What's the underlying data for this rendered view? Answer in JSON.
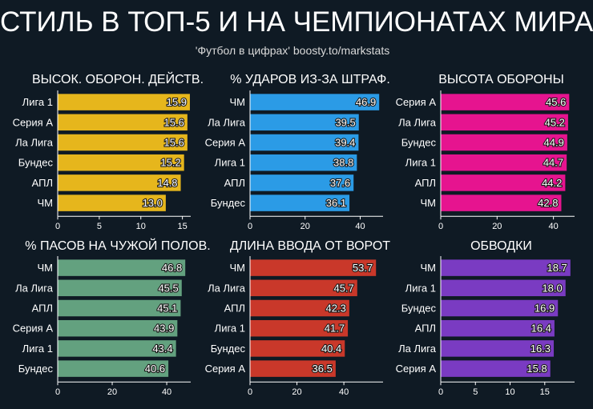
{
  "title": "СТИЛЬ В ТОП-5 И НА ЧЕМПИОНАТАХ МИРА",
  "subtitle": "'Футбол в цифрах' boosty.to/markstats",
  "chart_data": [
    {
      "type": "bar",
      "orientation": "horizontal",
      "title": "ВЫСОК. ОБОРОН. ДЕЙСТВ.",
      "color": "#e6b61c",
      "categories": [
        "Лига 1",
        "Серия А",
        "Ла Лига",
        "Бундес",
        "АПЛ",
        "ЧМ"
      ],
      "values": [
        15.9,
        15.6,
        15.6,
        15.2,
        14.8,
        13.0
      ],
      "labels": [
        "15.9",
        "15.6",
        "15.6",
        "15.2",
        "14.8",
        "13.0"
      ],
      "xticks": [
        0,
        5,
        10,
        15
      ],
      "xlim": [
        0,
        16.0
      ]
    },
    {
      "type": "bar",
      "orientation": "horizontal",
      "title": "% УДАРОВ ИЗ-ЗА ШТРАФ.",
      "color": "#2b9be6",
      "categories": [
        "ЧМ",
        "Ла Лига",
        "Серия А",
        "Лига 1",
        "АПЛ",
        "Бундес"
      ],
      "values": [
        46.9,
        39.5,
        39.4,
        38.8,
        37.6,
        36.1
      ],
      "labels": [
        "46.9",
        "39.5",
        "39.4",
        "38.8",
        "37.6",
        "36.1"
      ],
      "xticks": [
        0,
        20,
        40
      ],
      "xlim": [
        0,
        48.3
      ]
    },
    {
      "type": "bar",
      "orientation": "horizontal",
      "title": "ВЫСОТА ОБОРОНЫ",
      "color": "#e6148f",
      "categories": [
        "Серия А",
        "Ла Лига",
        "Бундес",
        "Лига 1",
        "АПЛ",
        "ЧМ"
      ],
      "values": [
        45.6,
        45.2,
        44.9,
        44.7,
        44.2,
        42.8
      ],
      "labels": [
        "45.6",
        "45.2",
        "44.9",
        "44.7",
        "44.2",
        "42.8"
      ],
      "xticks": [
        0,
        20,
        40
      ],
      "xlim": [
        0,
        47.5
      ]
    },
    {
      "type": "bar",
      "orientation": "horizontal",
      "title": "% ПАСОВ НА ЧУЖОЙ ПОЛОВ.",
      "color": "#63a17f",
      "categories": [
        "ЧМ",
        "Ла Лига",
        "АПЛ",
        "Серия А",
        "Лига 1",
        "Бундес"
      ],
      "values": [
        46.8,
        45.5,
        45.1,
        43.9,
        43.4,
        40.6
      ],
      "labels": [
        "46.8",
        "45.5",
        "45.1",
        "43.9",
        "43.4",
        "40.6"
      ],
      "xticks": [
        0,
        20,
        40
      ],
      "xlim": [
        0,
        48.8
      ]
    },
    {
      "type": "bar",
      "orientation": "horizontal",
      "title": "ДЛИНА ВВОДА ОТ ВОРОТ",
      "color": "#c9382a",
      "categories": [
        "ЧМ",
        "Ла Лига",
        "АПЛ",
        "Лига 1",
        "Бундес",
        "Серия А"
      ],
      "values": [
        53.7,
        45.7,
        42.3,
        41.7,
        40.4,
        36.5
      ],
      "labels": [
        "53.7",
        "45.7",
        "42.3",
        "41.7",
        "40.4",
        "36.5"
      ],
      "xticks": [
        0,
        20,
        40
      ],
      "xlim": [
        0,
        56.7
      ]
    },
    {
      "type": "bar",
      "orientation": "horizontal",
      "title": "ОБВОДКИ",
      "color": "#7a3bc2",
      "categories": [
        "ЧМ",
        "Лига 1",
        "Бундес",
        "АПЛ",
        "Ла Лига",
        "Серия А"
      ],
      "values": [
        18.7,
        18.0,
        16.9,
        16.4,
        16.3,
        15.8
      ],
      "labels": [
        "18.7",
        "18.0",
        "16.9",
        "16.4",
        "16.3",
        "15.8"
      ],
      "xticks": [
        0,
        5,
        10,
        15
      ],
      "xlim": [
        0,
        19.3
      ]
    }
  ]
}
